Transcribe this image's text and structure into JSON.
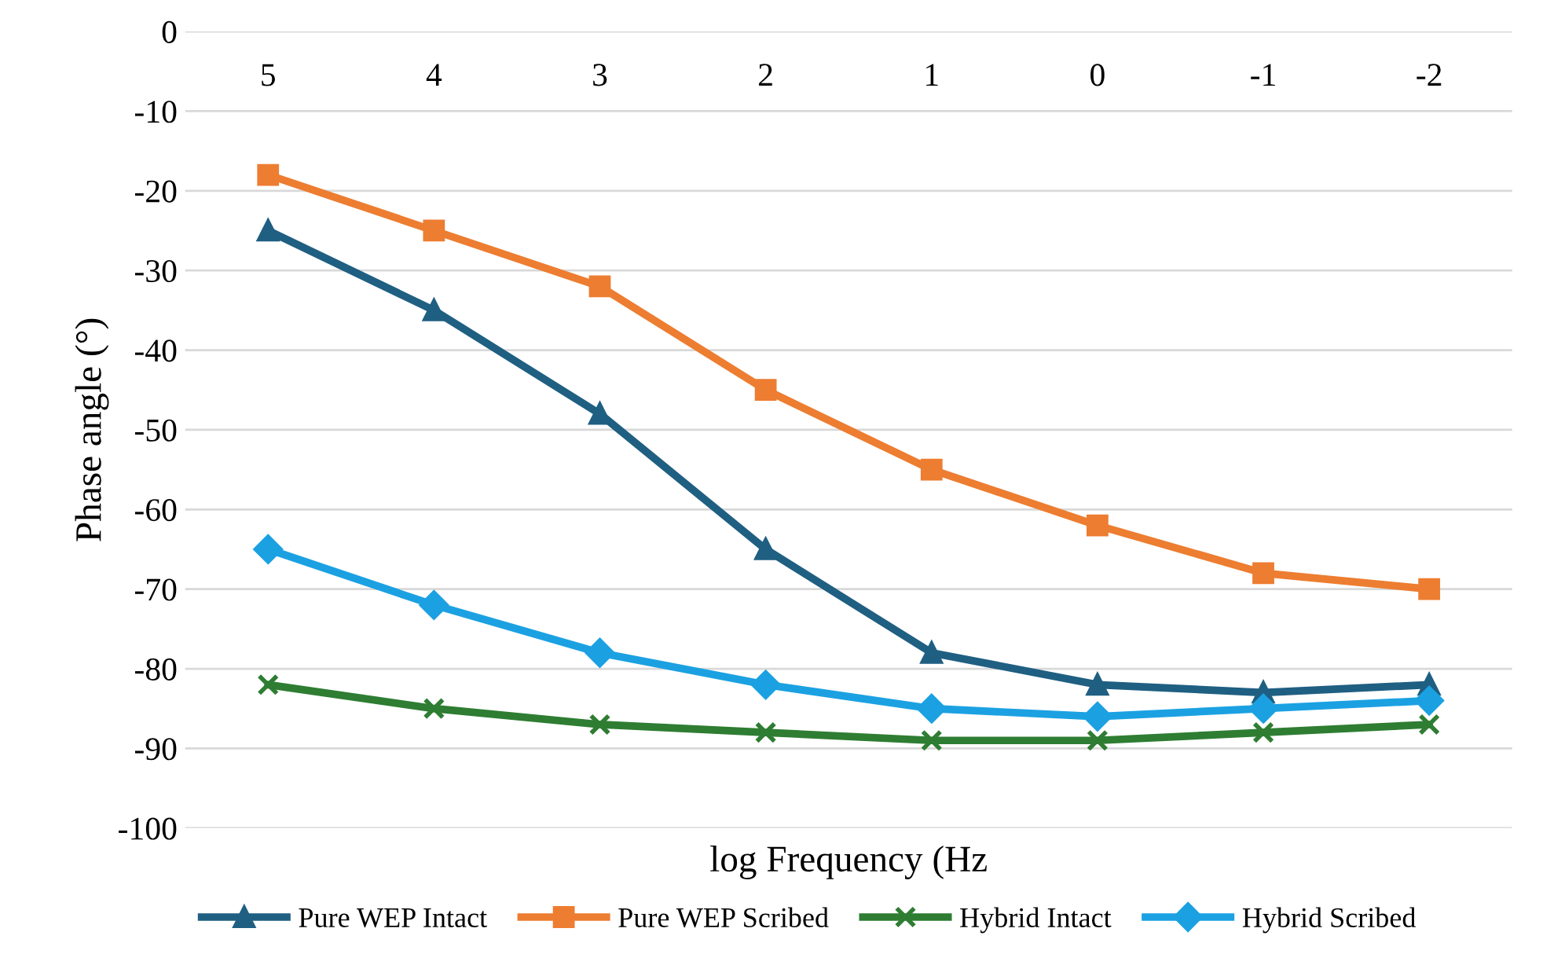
{
  "chart_data": {
    "type": "line",
    "xlabel": "log Frequency (Hz",
    "ylabel": "Phase angle (°)",
    "categories": [
      "5",
      "4",
      "3",
      "2",
      "1",
      "0",
      "-1",
      "-2"
    ],
    "ylim": [
      -100,
      0
    ],
    "yticks": [
      -100,
      -90,
      -80,
      -70,
      -60,
      -50,
      -40,
      -30,
      -20,
      -10,
      0
    ],
    "grid": "y",
    "legend": "bottom",
    "line_style": "solid",
    "series": [
      {
        "name": "Pure WEP Intact",
        "color": "#1f5f82",
        "marker": "triangle",
        "values": [
          -25,
          -35,
          -48,
          -65,
          -78,
          -82,
          -83,
          -82
        ]
      },
      {
        "name": "Pure WEP Scribed",
        "color": "#ed7d31",
        "marker": "square",
        "values": [
          -18,
          -25,
          -32,
          -45,
          -55,
          -62,
          -68,
          -70
        ]
      },
      {
        "name": "Hybrid Intact",
        "color": "#2e7d32",
        "marker": "cross",
        "values": [
          -82,
          -85,
          -87,
          -88,
          -89,
          -89,
          -88,
          -87
        ]
      },
      {
        "name": "Hybrid Scribed",
        "color": "#1ba1e2",
        "marker": "diamond",
        "values": [
          -65,
          -72,
          -78,
          -82,
          -85,
          -86,
          -85,
          -84
        ]
      }
    ]
  }
}
